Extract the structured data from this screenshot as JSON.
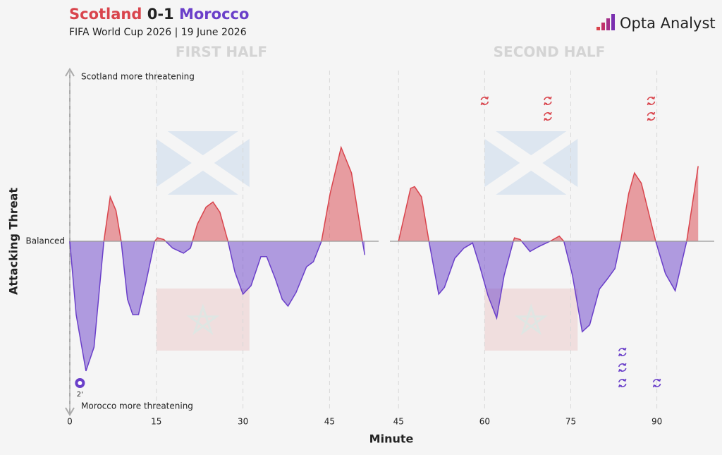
{
  "header": {
    "home": "Scotland",
    "score": "0-1",
    "away": "Morocco",
    "subtitle": "FIFA World Cup 2026 | 19 June 2026",
    "brand": "Opta Analyst",
    "home_color": "#d9444c",
    "away_color": "#6a3fc9"
  },
  "y_axis_label": "Attacking Threat",
  "x_axis_label": "Minute",
  "y_annotations": {
    "top": "Scotland more threatening",
    "bottom": "Morocco more threatening"
  },
  "chart_data": [
    {
      "type": "area",
      "title": "FIRST HALF",
      "x": [
        0,
        1.1,
        2.8,
        4.2,
        5.9,
        7,
        8,
        8.9,
        10,
        10.9,
        11.9,
        13.2,
        14.7,
        15.2,
        16.3,
        17.8,
        19.7,
        20.9,
        22.1,
        23.6,
        24.8,
        26,
        27.4,
        28.6,
        30,
        31.4,
        33.1,
        34.1,
        35.6,
        36.8,
        37.8,
        39.2,
        41,
        42.2,
        43.6,
        45.1,
        47,
        48.8,
        50.7,
        51.1
      ],
      "values": [
        0,
        -43,
        -76,
        -62,
        0,
        26,
        18,
        0,
        -34,
        -43,
        -43,
        -24,
        0,
        2,
        1,
        -4,
        -7,
        -4,
        10,
        20,
        23,
        17,
        0,
        -18,
        -31,
        -26,
        -9,
        -9,
        -22,
        -34,
        -38,
        -30,
        -15,
        -12,
        0,
        28,
        55,
        40,
        0,
        -8
      ],
      "positive_color": "#d9444c",
      "negative_color": "#6a3fc9",
      "xlim": [
        0,
        53.5
      ],
      "xticks": [
        0,
        15,
        30,
        45
      ],
      "ylim": [
        -100,
        100
      ],
      "yticks": [
        {
          "value": 0,
          "label": "Balanced"
        }
      ],
      "grid": true,
      "goals": [
        {
          "minute": 2,
          "label": "2'",
          "team": "Morocco"
        }
      ]
    },
    {
      "type": "area",
      "title": "SECOND HALF",
      "x": [
        45,
        47.1,
        47.8,
        49,
        50.3,
        52,
        53,
        54.8,
        56.4,
        57.9,
        59.1,
        60.6,
        62.1,
        63.4,
        65,
        65.2,
        66.2,
        67.9,
        69.5,
        71.4,
        73,
        73.8,
        75.3,
        77,
        78.3,
        80,
        81.4,
        82.7,
        83.7,
        85.1,
        86.1,
        87.3,
        89.8,
        91.5,
        93.2,
        95.2,
        97.2
      ],
      "values": [
        0,
        31,
        32,
        26,
        0,
        -31,
        -27,
        -10,
        -4,
        -1,
        -14,
        -32,
        -45,
        -20,
        0,
        2,
        1,
        -6,
        -3,
        0,
        3,
        0,
        -20,
        -53,
        -49,
        -28,
        -22,
        -16,
        0,
        28,
        40,
        34,
        0,
        -19,
        -29,
        0,
        44
      ],
      "positive_color": "#d9444c",
      "negative_color": "#6a3fc9",
      "xlim": [
        43.5,
        100
      ],
      "xticks": [
        45,
        60,
        75,
        90
      ],
      "ylim": [
        -100,
        100
      ],
      "grid": true,
      "substitutions": {
        "Scotland": [
          60,
          71,
          71,
          89,
          89
        ],
        "Morocco": [
          84,
          84,
          84,
          90
        ]
      }
    }
  ]
}
